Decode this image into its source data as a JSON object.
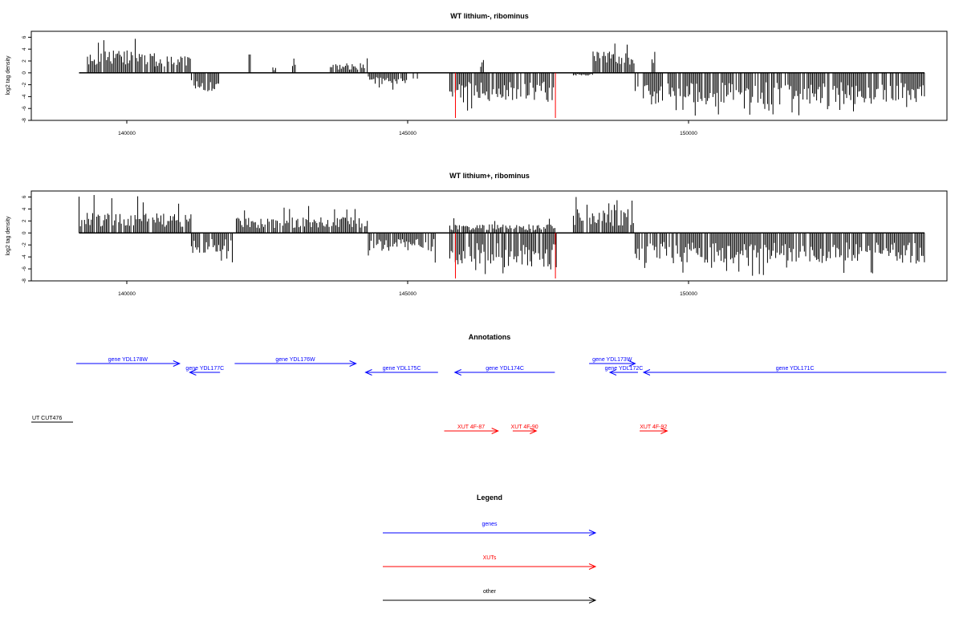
{
  "chart_data": [
    {
      "type": "bar",
      "title": "WT lithium-, ribominus",
      "xlabel": "",
      "ylabel": "log2 tag density",
      "xlim": [
        138300,
        154600
      ],
      "ylim": [
        -8,
        7
      ],
      "yticks": [
        -8,
        -6,
        -4,
        -2,
        0,
        2,
        4,
        6
      ],
      "xticks": [
        140000,
        145000,
        150000
      ],
      "xtick_labels": [
        "140000",
        "145000",
        "150000"
      ],
      "data_range": [
        139150,
        154200
      ],
      "profile": [
        {
          "from": 139150,
          "to": 139300,
          "level": 0
        },
        {
          "from": 139300,
          "to": 140500,
          "level": 3.2,
          "peak": 6.2
        },
        {
          "from": 140500,
          "to": 141150,
          "level": 2.4,
          "peak": 3.2
        },
        {
          "from": 141150,
          "to": 141650,
          "level": -2.6,
          "peak": -3.5
        },
        {
          "from": 142150,
          "to": 142200,
          "level": 2.6
        },
        {
          "from": 142600,
          "to": 142650,
          "level": 0.9
        },
        {
          "from": 142950,
          "to": 143000,
          "level": 2.3
        },
        {
          "from": 143600,
          "to": 144300,
          "level": 1.4,
          "peak": 3.2
        },
        {
          "from": 144300,
          "to": 145000,
          "level": -1.6,
          "peak": -3.2
        },
        {
          "from": 145100,
          "to": 145200,
          "level": -1.0
        },
        {
          "from": 145750,
          "to": 147600,
          "level": -4.2,
          "peak": -6.5
        },
        {
          "from": 146300,
          "to": 146350,
          "level": 2.9
        },
        {
          "from": 147950,
          "to": 148300,
          "level": -0.4
        },
        {
          "from": 148300,
          "to": 149050,
          "level": 3.0,
          "peak": 5.0
        },
        {
          "from": 149350,
          "to": 149400,
          "level": 3.2
        },
        {
          "from": 149050,
          "to": 154200,
          "level": -4.5,
          "peak": -7.2
        }
      ],
      "highlights": [
        {
          "x": 145850,
          "y": -7.6
        },
        {
          "x": 147630,
          "y": -7.6
        }
      ]
    },
    {
      "type": "bar",
      "title": "WT lithium+, ribominus",
      "xlabel": "",
      "ylabel": "log2 tag density",
      "xlim": [
        138300,
        154600
      ],
      "ylim": [
        -8,
        7
      ],
      "yticks": [
        -8,
        -6,
        -4,
        -2,
        0,
        2,
        4,
        6
      ],
      "xticks": [
        140000,
        145000,
        150000
      ],
      "xtick_labels": [
        "140000",
        "145000",
        "150000"
      ],
      "data_range": [
        139150,
        154200
      ],
      "profile": [
        {
          "from": 139150,
          "to": 141150,
          "level": 2.8,
          "peak": 6.5
        },
        {
          "from": 141150,
          "to": 141900,
          "level": -2.8,
          "peak": -5.0
        },
        {
          "from": 141950,
          "to": 144300,
          "level": 2.2,
          "peak": 5.0
        },
        {
          "from": 144300,
          "to": 145500,
          "level": -2.6,
          "peak": -5.0
        },
        {
          "from": 145750,
          "to": 147650,
          "level": -4.8,
          "peak": -7.5
        },
        {
          "from": 145750,
          "to": 147650,
          "level": 1.2,
          "peak": 2.6
        },
        {
          "from": 147950,
          "to": 149050,
          "level": 3.3,
          "peak": 6.0
        },
        {
          "from": 149050,
          "to": 154200,
          "level": -4.3,
          "peak": -7.3
        }
      ],
      "highlights": [
        {
          "x": 145850,
          "y": -7.6
        },
        {
          "x": 147630,
          "y": -7.6
        }
      ]
    }
  ],
  "annotations": {
    "title": "Annotations",
    "features": [
      {
        "label": "gene YDL178W",
        "kind": "gene",
        "dir": "+",
        "x1": 139100,
        "x2": 140940,
        "row": 0
      },
      {
        "label": "gene YDL177C",
        "kind": "gene",
        "dir": "-",
        "x1": 141120,
        "x2": 141660,
        "row": 1
      },
      {
        "label": "gene YDL176W",
        "kind": "gene",
        "dir": "+",
        "x1": 141920,
        "x2": 144080,
        "row": 0
      },
      {
        "label": "gene YDL175C",
        "kind": "gene",
        "dir": "-",
        "x1": 144250,
        "x2": 145540,
        "row": 1
      },
      {
        "label": "gene YDL174C",
        "kind": "gene",
        "dir": "-",
        "x1": 145840,
        "x2": 147620,
        "row": 1
      },
      {
        "label": "gene YDL173W",
        "kind": "gene",
        "dir": "+",
        "x1": 148230,
        "x2": 149050,
        "row": 0
      },
      {
        "label": "gene YDL172C",
        "kind": "gene",
        "dir": "-",
        "x1": 148600,
        "x2": 149100,
        "row": 1
      },
      {
        "label": "gene YDL171C",
        "kind": "gene",
        "dir": "-",
        "x1": 149200,
        "x2": 154590,
        "row": 1
      },
      {
        "label": "XUT 4F-87",
        "kind": "xut",
        "dir": "+",
        "x1": 145650,
        "x2": 146610,
        "row": 0
      },
      {
        "label": "XUT 4F-90",
        "kind": "xut",
        "dir": "+",
        "x1": 146870,
        "x2": 147290,
        "row": 0
      },
      {
        "label": "XUT 4F-92",
        "kind": "xut",
        "dir": "+",
        "x1": 149130,
        "x2": 149620,
        "row": 0
      },
      {
        "label": "UT CUT476",
        "kind": "other",
        "dir": "",
        "x1": 0,
        "x2": 0,
        "row": 0
      }
    ]
  },
  "legend": {
    "title": "Legend",
    "items": [
      {
        "label": "genes",
        "color": "#0000ff"
      },
      {
        "label": "XUTs",
        "color": "#ff0000"
      },
      {
        "label": "other",
        "color": "#000000"
      }
    ]
  },
  "colors": {
    "gene": "#0000ff",
    "xut": "#ff0000",
    "other": "#000000",
    "signal": "#000000",
    "highlight": "#ff0000"
  }
}
